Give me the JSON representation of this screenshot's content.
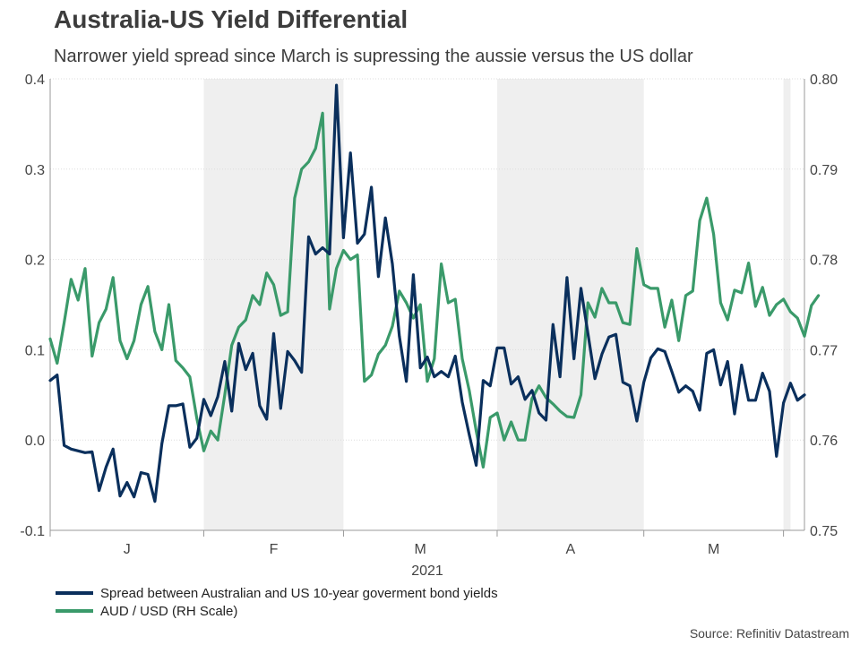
{
  "header": {
    "title": "Australia-US Yield Differential",
    "subtitle": "Narrower yield spread since March is supressing the aussie versus the US dollar"
  },
  "source": "Source: Refinitiv Datastream",
  "colors": {
    "spread": "#0a2f5c",
    "audusd": "#3a9a6a",
    "shade": "#efefef",
    "axis": "#999999"
  },
  "chart_data": {
    "type": "line",
    "title": "Australia-US Yield Differential",
    "xlabel": "2021",
    "x_ticks": [
      "J",
      "F",
      "M",
      "A",
      "M"
    ],
    "month_bounds": [
      0,
      22,
      42,
      64,
      85,
      105
    ],
    "shaded_regions": [
      [
        22,
        42
      ],
      [
        64,
        85
      ],
      [
        105,
        106
      ]
    ],
    "left_axis": {
      "ylim": [
        -0.1,
        0.4
      ],
      "ticks": [
        -0.1,
        0.0,
        0.1,
        0.2,
        0.3,
        0.4
      ],
      "tick_labels": [
        "-0.1",
        "0.0",
        "0.1",
        "0.2",
        "0.3",
        "0.4"
      ]
    },
    "right_axis": {
      "ylim": [
        0.75,
        0.8
      ],
      "ticks": [
        0.75,
        0.76,
        0.77,
        0.78,
        0.79,
        0.8
      ],
      "tick_labels": [
        "0.75",
        "0.76",
        "0.77",
        "0.78",
        "0.79",
        "0.80"
      ]
    },
    "series": [
      {
        "name": "Spread between Australian and US 10-year goverment bond yields",
        "axis": "left",
        "color": "#0a2f5c",
        "values": [
          0.066,
          0.072,
          -0.006,
          -0.01,
          -0.012,
          -0.014,
          -0.013,
          -0.056,
          -0.03,
          -0.01,
          -0.062,
          -0.047,
          -0.063,
          -0.036,
          -0.038,
          -0.068,
          -0.004,
          0.038,
          0.038,
          0.04,
          -0.008,
          0.002,
          0.045,
          0.027,
          0.048,
          0.087,
          0.032,
          0.107,
          0.078,
          0.096,
          0.038,
          0.023,
          0.118,
          0.035,
          0.098,
          0.088,
          0.075,
          0.225,
          0.206,
          0.213,
          0.206,
          0.393,
          0.224,
          0.318,
          0.218,
          0.228,
          0.28,
          0.181,
          0.246,
          0.195,
          0.115,
          0.065,
          0.183,
          0.08,
          0.092,
          0.07,
          0.076,
          0.07,
          0.093,
          0.042,
          0.006,
          -0.028,
          0.066,
          0.06,
          0.102,
          0.102,
          0.062,
          0.07,
          0.045,
          0.055,
          0.03,
          0.022,
          0.128,
          0.07,
          0.18,
          0.09,
          0.168,
          0.118,
          0.068,
          0.095,
          0.114,
          0.117,
          0.064,
          0.06,
          0.021,
          0.064,
          0.091,
          0.101,
          0.098,
          0.076,
          0.053,
          0.06,
          0.054,
          0.033,
          0.096,
          0.1,
          0.061,
          0.087,
          0.029,
          0.083,
          0.044,
          0.044,
          0.074,
          0.054,
          -0.018,
          0.041,
          0.063,
          0.044,
          0.05
        ]
      },
      {
        "name": "AUD / USD (RH Scale)",
        "axis": "right",
        "color": "#3a9a6a",
        "values": [
          0.7712,
          0.7685,
          0.773,
          0.7778,
          0.7755,
          0.779,
          0.7693,
          0.773,
          0.7745,
          0.778,
          0.771,
          0.769,
          0.771,
          0.775,
          0.777,
          0.772,
          0.77,
          0.775,
          0.7688,
          0.768,
          0.767,
          0.7624,
          0.7588,
          0.761,
          0.76,
          0.765,
          0.7705,
          0.7725,
          0.7733,
          0.776,
          0.775,
          0.7785,
          0.7772,
          0.7738,
          0.7742,
          0.7868,
          0.79,
          0.7908,
          0.7923,
          0.7962,
          0.7745,
          0.779,
          0.781,
          0.78,
          0.7805,
          0.7665,
          0.7672,
          0.7695,
          0.7705,
          0.7726,
          0.7765,
          0.7752,
          0.7735,
          0.775,
          0.7665,
          0.769,
          0.7795,
          0.7752,
          0.7756,
          0.769,
          0.7655,
          0.761,
          0.757,
          0.7625,
          0.763,
          0.76,
          0.762,
          0.76,
          0.76,
          0.7646,
          0.766,
          0.7647,
          0.764,
          0.7632,
          0.7626,
          0.7625,
          0.765,
          0.7752,
          0.7736,
          0.7768,
          0.7752,
          0.7752,
          0.773,
          0.7728,
          0.7812,
          0.7772,
          0.7768,
          0.7768,
          0.7725,
          0.7755,
          0.771,
          0.776,
          0.7765,
          0.7843,
          0.7868,
          0.7828,
          0.7752,
          0.7733,
          0.7766,
          0.7763,
          0.7796,
          0.7748,
          0.7769,
          0.7738,
          0.775,
          0.7756,
          0.7742,
          0.7735,
          0.7715,
          0.7749,
          0.776
        ]
      }
    ],
    "legend_position": "bottom-left"
  }
}
